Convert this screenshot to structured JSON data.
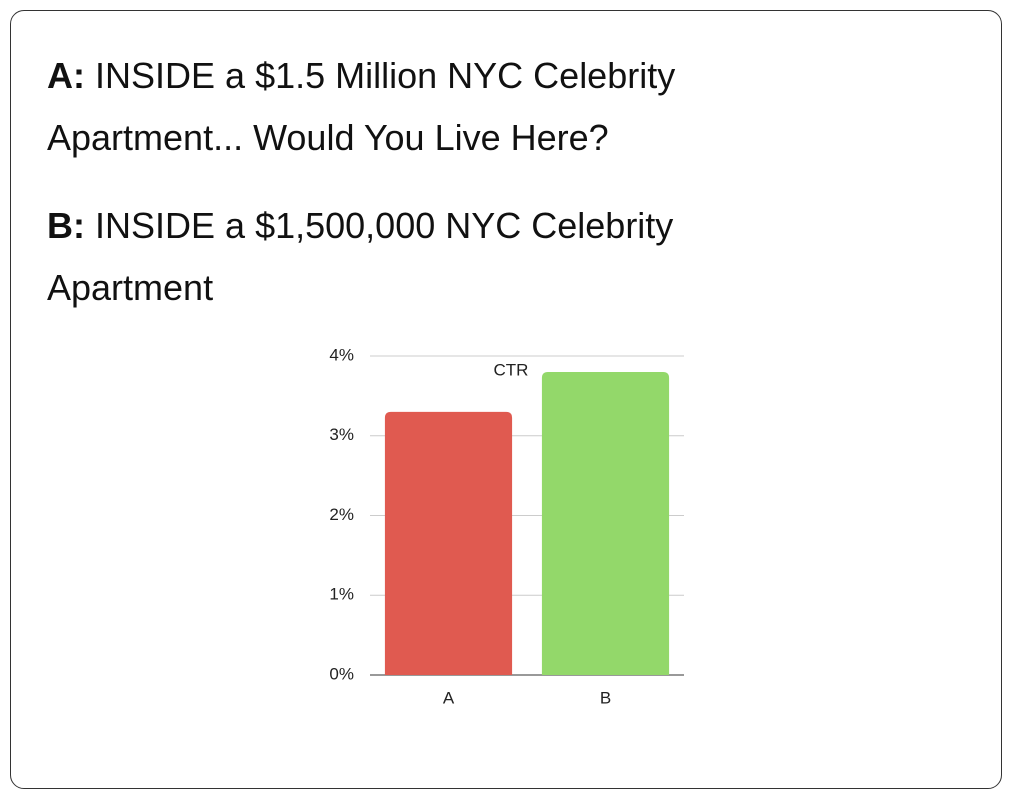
{
  "options": [
    {
      "label": "A:",
      "text": "INSIDE a $1.5 Million NYC Celebrity Apartment... Would You Live Here?"
    },
    {
      "label": "B:",
      "text": "INSIDE a $1,500,000 NYC Celebrity Apartment"
    }
  ],
  "chart_data": {
    "type": "bar",
    "title": "CTR",
    "categories": [
      "A",
      "B"
    ],
    "values": [
      3.3,
      3.8
    ],
    "colors": [
      "#e05a50",
      "#93d86a"
    ],
    "ylim": [
      0,
      4
    ],
    "yticks": [
      {
        "value": 0,
        "label": "0%"
      },
      {
        "value": 1,
        "label": "1%"
      },
      {
        "value": 2,
        "label": "2%"
      },
      {
        "value": 3,
        "label": "3%"
      },
      {
        "value": 4,
        "label": "4%"
      }
    ],
    "grid": true
  }
}
